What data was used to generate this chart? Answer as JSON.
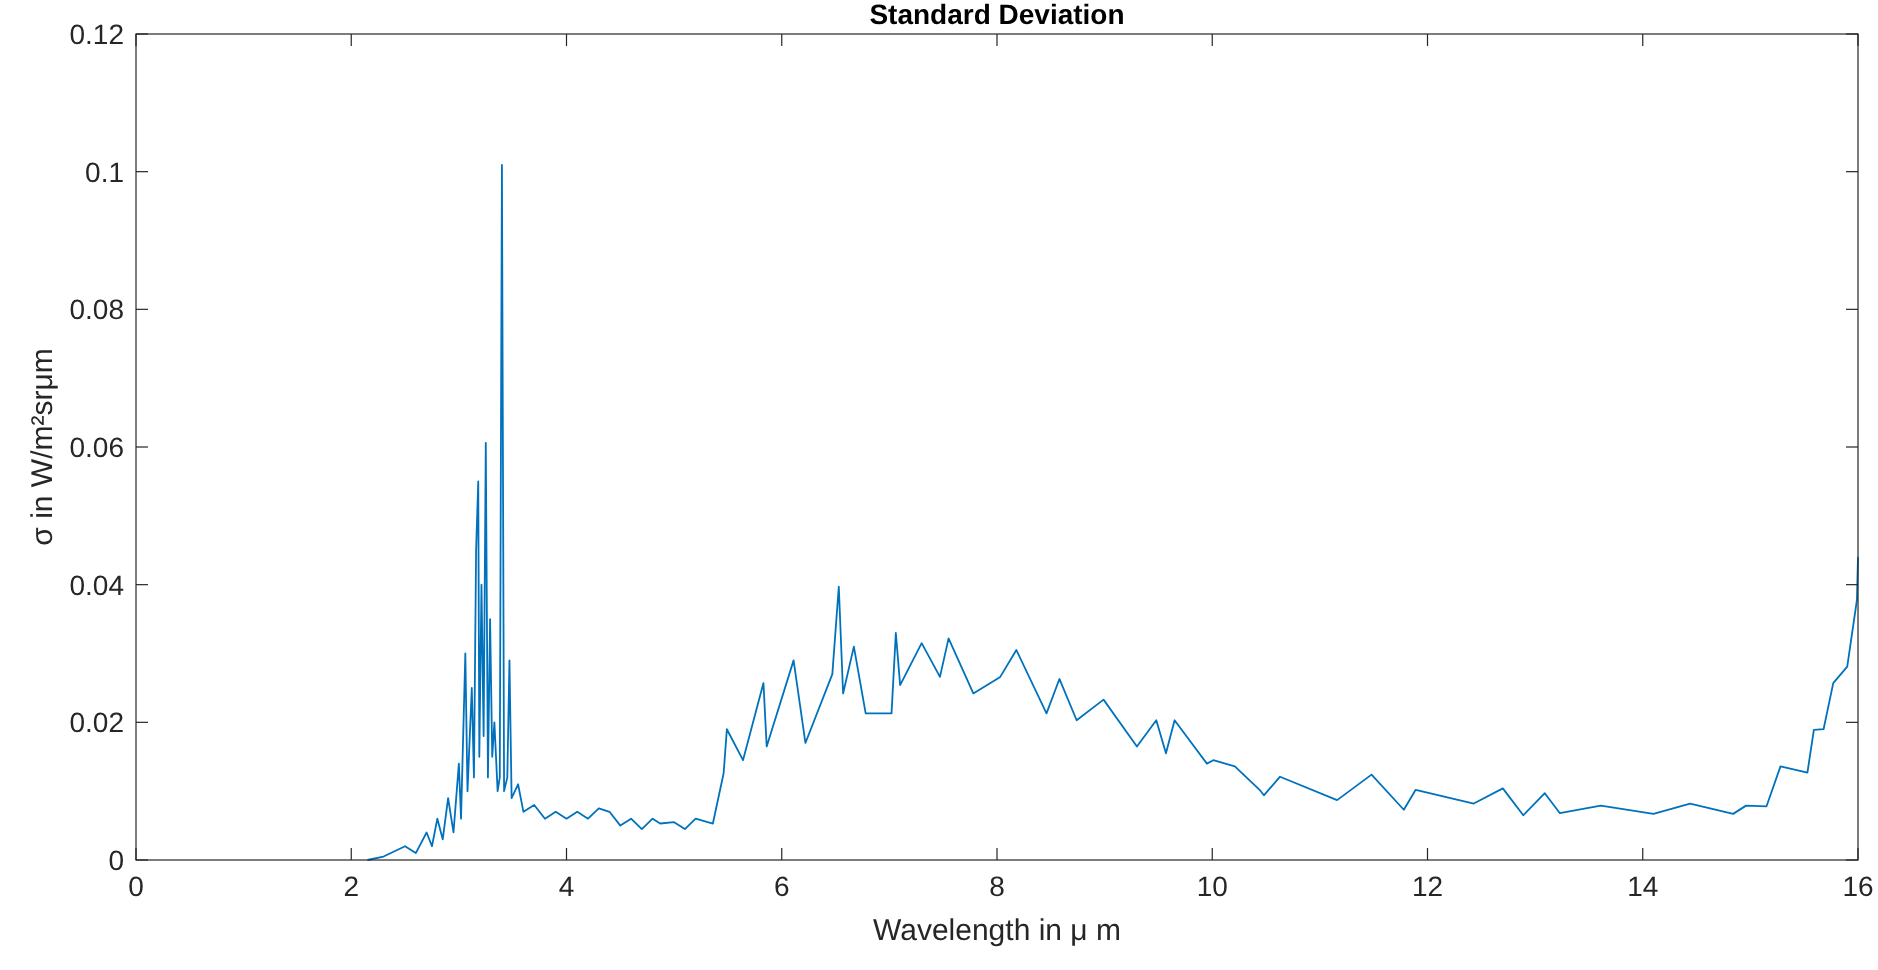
{
  "chart_data": {
    "type": "line",
    "title": "Standard Deviation",
    "xlabel": "Wavelength in μ m",
    "ylabel": "σ in W/m²srμm",
    "xlim": [
      0,
      16
    ],
    "xticks": [
      0,
      2,
      4,
      6,
      8,
      10,
      12,
      14,
      16
    ],
    "ylim": [
      0,
      0.12
    ],
    "yticks": [
      0,
      0.02,
      0.04,
      0.06,
      0.08,
      0.1,
      0.12
    ],
    "grid": false,
    "marker": "none",
    "line_style": "solid",
    "series": [
      {
        "color": "#0072bd",
        "x": [
          2.15,
          2.3,
          2.5,
          2.6,
          2.7,
          2.75,
          2.8,
          2.85,
          2.9,
          2.95,
          3.0,
          3.02,
          3.06,
          3.08,
          3.12,
          3.14,
          3.16,
          3.18,
          3.19,
          3.21,
          3.23,
          3.25,
          3.27,
          3.29,
          3.31,
          3.33,
          3.36,
          3.38,
          3.4,
          3.42,
          3.45,
          3.47,
          3.49,
          3.55,
          3.6,
          3.7,
          3.8,
          3.9,
          4.0,
          4.1,
          4.2,
          4.3,
          4.4,
          4.5,
          4.6,
          4.7,
          4.8,
          4.87,
          5.0,
          5.1,
          5.2,
          5.36,
          5.46,
          5.49,
          5.64,
          5.83,
          5.86,
          6.11,
          6.22,
          6.47,
          6.53,
          6.57,
          6.67,
          6.78,
          7.02,
          7.06,
          7.1,
          7.3,
          7.47,
          7.55,
          7.78,
          8.03,
          8.18,
          8.46,
          8.58,
          8.74,
          8.99,
          9.3,
          9.48,
          9.57,
          9.65,
          9.95,
          10.01,
          10.21,
          10.44,
          10.48,
          10.63,
          11.16,
          11.48,
          11.78,
          11.89,
          12.43,
          12.7,
          12.89,
          13.09,
          13.23,
          13.61,
          14.1,
          14.44,
          14.84,
          14.96,
          15.15,
          15.28,
          15.53,
          15.59,
          15.68,
          15.77,
          15.9,
          15.99,
          16
        ],
        "values": [
          0,
          0.0005,
          0.002,
          0.001,
          0.004,
          0.002,
          0.006,
          0.003,
          0.009,
          0.004,
          0.014,
          0.006,
          0.03,
          0.01,
          0.025,
          0.012,
          0.045,
          0.055,
          0.015,
          0.04,
          0.018,
          0.0606,
          0.012,
          0.035,
          0.015,
          0.02,
          0.01,
          0.012,
          0.101,
          0.01,
          0.012,
          0.029,
          0.009,
          0.011,
          0.007,
          0.008,
          0.006,
          0.007,
          0.006,
          0.007,
          0.006,
          0.0075,
          0.007,
          0.005,
          0.006,
          0.0045,
          0.006,
          0.0053,
          0.0055,
          0.0045,
          0.006,
          0.0053,
          0.0126,
          0.019,
          0.0145,
          0.0257,
          0.0165,
          0.029,
          0.017,
          0.027,
          0.0397,
          0.0242,
          0.031,
          0.0213,
          0.0213,
          0.033,
          0.0254,
          0.0315,
          0.0266,
          0.0322,
          0.0242,
          0.0266,
          0.0305,
          0.0213,
          0.0263,
          0.0203,
          0.0233,
          0.0165,
          0.0203,
          0.0155,
          0.0203,
          0.014,
          0.0145,
          0.0136,
          0.0102,
          0.0094,
          0.0121,
          0.0087,
          0.0124,
          0.0073,
          0.0102,
          0.0082,
          0.0104,
          0.0065,
          0.0097,
          0.0068,
          0.0079,
          0.0067,
          0.0082,
          0.0067,
          0.0079,
          0.0078,
          0.0136,
          0.0127,
          0.0189,
          0.019,
          0.0257,
          0.0281,
          0.0378,
          0.044
        ]
      }
    ]
  }
}
